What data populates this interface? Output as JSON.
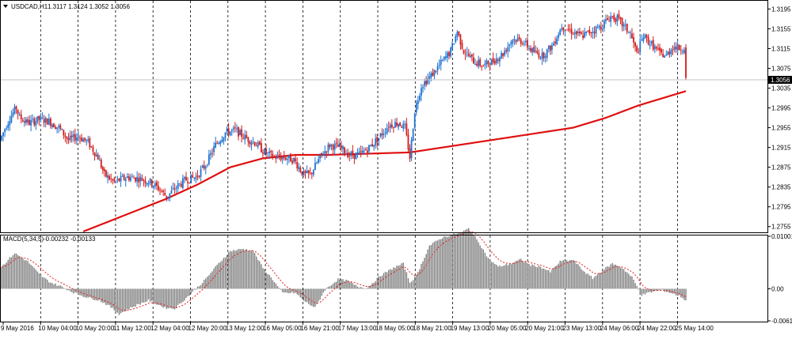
{
  "window": {
    "symbol_label": "USDCAD,H1",
    "ohlc_text": "1.3117 1.3124 1.3052 1.3056",
    "current_price_label": "1.3056"
  },
  "colors": {
    "up": "#1e73d2",
    "down": "#d41a1a",
    "ma": "#e01010",
    "macd_bar": "#7f7f7f",
    "signal": "#e02020",
    "grid": "#000000",
    "background": "#ffffff",
    "price_line": "#c0c0c0",
    "price_badge_bg": "#000000",
    "price_badge_fg": "#ffffff"
  },
  "chart_data": [
    {
      "type": "candlestick",
      "title": "USDCAD,H1",
      "ylim": [
        1.2745,
        1.321
      ],
      "y_ticks": [
        "1.3195",
        "1.3155",
        "1.3115",
        "1.3075",
        "1.3035",
        "1.2995",
        "1.2955",
        "1.2915",
        "1.2875",
        "1.2835",
        "1.2795",
        "1.2755"
      ],
      "x_ticks": [
        "9 May 2016",
        "10 May 04:00",
        "10 May 20:00",
        "11 May 12:00",
        "12 May 04:00",
        "12 May 20:00",
        "13 May 12:00",
        "16 May 05:00",
        "16 May 21:00",
        "17 May 13:00",
        "18 May 05:00",
        "18 May 21:00",
        "19 May 13:00",
        "20 May 05:00",
        "20 May 21:00",
        "23 May 13:00",
        "24 May 06:00",
        "24 May 22:00",
        "25 May 14:00"
      ],
      "grid": true,
      "price_anchors": [
        [
          0,
          1.293
        ],
        [
          6,
          1.2975
        ],
        [
          10,
          1.2995
        ],
        [
          12,
          1.2975
        ],
        [
          18,
          1.2965
        ],
        [
          24,
          1.2972
        ],
        [
          30,
          1.2968
        ],
        [
          36,
          1.2955
        ],
        [
          42,
          1.293
        ],
        [
          48,
          1.2938
        ],
        [
          54,
          1.2925
        ],
        [
          60,
          1.2895
        ],
        [
          64,
          1.286
        ],
        [
          70,
          1.2845
        ],
        [
          78,
          1.2855
        ],
        [
          86,
          1.2852
        ],
        [
          92,
          1.2845
        ],
        [
          98,
          1.283
        ],
        [
          102,
          1.2815
        ],
        [
          108,
          1.2835
        ],
        [
          114,
          1.285
        ],
        [
          120,
          1.2855
        ],
        [
          126,
          1.288
        ],
        [
          132,
          1.292
        ],
        [
          138,
          1.2945
        ],
        [
          144,
          1.295
        ],
        [
          150,
          1.2935
        ],
        [
          156,
          1.2925
        ],
        [
          162,
          1.2905
        ],
        [
          168,
          1.2895
        ],
        [
          174,
          1.2895
        ],
        [
          180,
          1.289
        ],
        [
          186,
          1.286
        ],
        [
          190,
          1.286
        ],
        [
          196,
          1.2895
        ],
        [
          202,
          1.292
        ],
        [
          208,
          1.2915
        ],
        [
          214,
          1.29
        ],
        [
          220,
          1.29
        ],
        [
          226,
          1.2915
        ],
        [
          232,
          1.2935
        ],
        [
          238,
          1.296
        ],
        [
          244,
          1.2965
        ],
        [
          248,
          1.2955
        ],
        [
          251,
          1.2895
        ],
        [
          254,
          1.299
        ],
        [
          258,
          1.304
        ],
        [
          264,
          1.306
        ],
        [
          270,
          1.3085
        ],
        [
          276,
          1.311
        ],
        [
          280,
          1.315
        ],
        [
          284,
          1.311
        ],
        [
          290,
          1.309
        ],
        [
          296,
          1.308
        ],
        [
          302,
          1.309
        ],
        [
          308,
          1.3105
        ],
        [
          314,
          1.3135
        ],
        [
          320,
          1.313
        ],
        [
          326,
          1.311
        ],
        [
          332,
          1.31
        ],
        [
          338,
          1.312
        ],
        [
          344,
          1.316
        ],
        [
          350,
          1.315
        ],
        [
          356,
          1.314
        ],
        [
          362,
          1.315
        ],
        [
          368,
          1.316
        ],
        [
          374,
          1.318
        ],
        [
          378,
          1.3175
        ],
        [
          382,
          1.316
        ],
        [
          386,
          1.3145
        ],
        [
          390,
          1.3105
        ],
        [
          394,
          1.314
        ],
        [
          400,
          1.312
        ],
        [
          404,
          1.3105
        ],
        [
          408,
          1.31
        ],
        [
          412,
          1.312
        ],
        [
          416,
          1.3115
        ],
        [
          419,
          1.3117
        ]
      ],
      "last_candle": {
        "open": 1.3117,
        "high": 1.3124,
        "low": 1.3052,
        "close": 1.3056
      },
      "ma_anchors": [
        [
          50,
          1.2745
        ],
        [
          100,
          1.281
        ],
        [
          120,
          1.284
        ],
        [
          140,
          1.2875
        ],
        [
          160,
          1.2893
        ],
        [
          180,
          1.29
        ],
        [
          200,
          1.29
        ],
        [
          250,
          1.2905
        ],
        [
          290,
          1.2925
        ],
        [
          330,
          1.2945
        ],
        [
          350,
          1.2955
        ],
        [
          370,
          1.2975
        ],
        [
          390,
          1.3
        ],
        [
          420,
          1.303
        ]
      ]
    },
    {
      "type": "bar",
      "title": "MACD(5,34,5)",
      "values_text": "-0.00232 -0.00133",
      "ylim": [
        -0.00611,
        0.01001
      ],
      "y_ticks": [
        "0.01001",
        "0.00",
        "-0.00611"
      ],
      "macd_anchors": [
        [
          0,
          0.0042
        ],
        [
          8,
          0.0068
        ],
        [
          16,
          0.0052
        ],
        [
          24,
          0.0025
        ],
        [
          30,
          0.0012
        ],
        [
          36,
          0.0005
        ],
        [
          44,
          -0.0007
        ],
        [
          52,
          -0.0016
        ],
        [
          60,
          -0.0022
        ],
        [
          66,
          -0.0033
        ],
        [
          72,
          -0.0048
        ],
        [
          80,
          -0.0035
        ],
        [
          90,
          -0.0022
        ],
        [
          100,
          -0.0036
        ],
        [
          106,
          -0.0038
        ],
        [
          114,
          -0.0015
        ],
        [
          124,
          0.0015
        ],
        [
          132,
          0.0045
        ],
        [
          140,
          0.0072
        ],
        [
          148,
          0.0076
        ],
        [
          154,
          0.0072
        ],
        [
          160,
          0.004
        ],
        [
          166,
          0.0018
        ],
        [
          172,
          -0.0008
        ],
        [
          180,
          -0.0008
        ],
        [
          186,
          -0.0025
        ],
        [
          192,
          -0.0036
        ],
        [
          198,
          -0.0002
        ],
        [
          206,
          0.0018
        ],
        [
          212,
          0.0015
        ],
        [
          218,
          0.0004
        ],
        [
          224,
          0.0002
        ],
        [
          232,
          0.0025
        ],
        [
          240,
          0.004
        ],
        [
          246,
          0.0048
        ],
        [
          250,
          0.0012
        ],
        [
          254,
          0.0025
        ],
        [
          262,
          0.0082
        ],
        [
          270,
          0.0098
        ],
        [
          276,
          0.0103
        ],
        [
          282,
          0.0108
        ],
        [
          286,
          0.0115
        ],
        [
          292,
          0.009
        ],
        [
          298,
          0.0058
        ],
        [
          304,
          0.0042
        ],
        [
          312,
          0.0048
        ],
        [
          318,
          0.0056
        ],
        [
          324,
          0.0045
        ],
        [
          330,
          0.0042
        ],
        [
          336,
          0.0032
        ],
        [
          342,
          0.0052
        ],
        [
          350,
          0.0055
        ],
        [
          356,
          0.0035
        ],
        [
          362,
          0.002
        ],
        [
          368,
          0.0035
        ],
        [
          374,
          0.0048
        ],
        [
          380,
          0.004
        ],
        [
          386,
          0.0022
        ],
        [
          392,
          -0.0012
        ],
        [
          398,
          -0.0006
        ],
        [
          404,
          -0.0002
        ],
        [
          410,
          -0.0008
        ],
        [
          416,
          -0.0015
        ],
        [
          420,
          -0.0025
        ]
      ]
    }
  ]
}
